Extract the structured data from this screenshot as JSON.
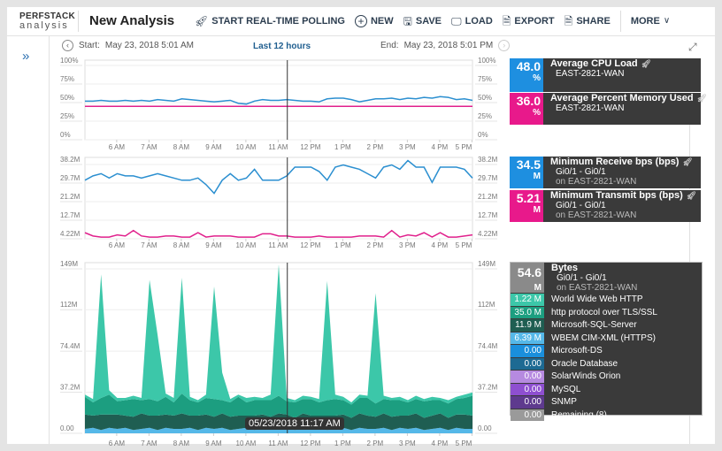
{
  "header": {
    "logo_top": "PERFSTACK",
    "logo_bottom": "analysis",
    "title": "New Analysis",
    "toolbar": [
      {
        "label": "START REAL-TIME POLLING",
        "icon": "rocket-icon"
      },
      {
        "label": "NEW",
        "icon": "plus-circle-icon"
      },
      {
        "label": "SAVE",
        "icon": "save-icon"
      },
      {
        "label": "LOAD",
        "icon": "load-icon"
      },
      {
        "label": "EXPORT",
        "icon": "export-icon"
      },
      {
        "label": "SHARE",
        "icon": "share-icon"
      },
      {
        "label": "MORE",
        "icon": "chevron-down-icon"
      }
    ]
  },
  "timebar": {
    "start_label": "Start:",
    "start": "May 23, 2018 5:01 AM",
    "range": "Last 12 hours",
    "end_label": "End:",
    "end": "May 23, 2018 5:01 PM"
  },
  "tooltip": "05/23/2018 11:17 AM",
  "cursor_time": "11:17",
  "legends": {
    "cpu": {
      "value": "48.0",
      "unit": "%",
      "name": "Average CPU Load",
      "node": "EAST-2821-WAN",
      "color": "#1e8fe0"
    },
    "mem": {
      "value": "36.0",
      "unit": "%",
      "name": "Average Percent Memory Used",
      "node": "EAST-2821-WAN",
      "color": "#e8198b"
    },
    "rx": {
      "value": "34.5",
      "unit": "M",
      "name": "Minimum Receive bps (bps)",
      "iface": "Gi0/1 - Gi0/1",
      "node": "on EAST-2821-WAN",
      "color": "#1e8fe0"
    },
    "tx": {
      "value": "5.21",
      "unit": "M",
      "name": "Minimum Transmit bps (bps)",
      "iface": "Gi0/1 - Gi0/1",
      "node": "on EAST-2821-WAN",
      "color": "#e8198b"
    },
    "bytes": {
      "value": "54.6",
      "unit": "M",
      "name": "Bytes",
      "iface": "Gi0/1 - Gi0/1",
      "node": "on EAST-2821-WAN",
      "color": "#8a8a8a",
      "rows": [
        {
          "value": "1.22 M",
          "label": "World Wide Web HTTP",
          "color": "#3cc7a9"
        },
        {
          "value": "35.0 M",
          "label": "http protocol over TLS/SSL",
          "color": "#1c9e80"
        },
        {
          "value": "11.9 M",
          "label": "Microsoft-SQL-Server",
          "color": "#1f5e52"
        },
        {
          "value": "6.39 M",
          "label": "WBEM CIM-XML (HTTPS)",
          "color": "#55b8e8"
        },
        {
          "value": "0.00",
          "label": "Microsoft-DS",
          "color": "#1a8fdc"
        },
        {
          "value": "0.00",
          "label": "Oracle Database",
          "color": "#1d6a93"
        },
        {
          "value": "0.00",
          "label": "SolarWinds Orion",
          "color": "#b68ae0"
        },
        {
          "value": "0.00",
          "label": "MySQL",
          "color": "#8e4fd0"
        },
        {
          "value": "0.00",
          "label": "SNMP",
          "color": "#5e3a8e"
        },
        {
          "value": "0.00",
          "label": "Remaining (8)",
          "color": "#9a9a9a"
        }
      ]
    }
  },
  "chart_data": [
    {
      "type": "line",
      "ylim": [
        0,
        100
      ],
      "yticks": [
        "0%",
        "25%",
        "50%",
        "75%",
        "100%"
      ],
      "ytick_values": [
        0,
        25,
        50,
        75,
        100
      ],
      "xticks": [
        "6 AM",
        "7 AM",
        "8 AM",
        "9 AM",
        "10 AM",
        "11 AM",
        "12 PM",
        "1 PM",
        "2 PM",
        "3 PM",
        "4 PM",
        "5 PM"
      ],
      "x": [
        "05:01",
        "05:16",
        "05:31",
        "05:46",
        "06:01",
        "06:16",
        "06:31",
        "06:46",
        "07:01",
        "07:16",
        "07:31",
        "07:46",
        "08:01",
        "08:16",
        "08:31",
        "08:46",
        "09:01",
        "09:16",
        "09:31",
        "09:46",
        "10:01",
        "10:16",
        "10:31",
        "10:46",
        "11:01",
        "11:16",
        "11:31",
        "11:46",
        "12:01",
        "12:16",
        "12:31",
        "12:46",
        "13:01",
        "13:16",
        "13:31",
        "13:46",
        "14:01",
        "14:16",
        "14:31",
        "14:46",
        "15:01",
        "15:16",
        "15:31",
        "15:46",
        "16:01",
        "16:16",
        "16:31",
        "16:46",
        "17:01"
      ],
      "series": [
        {
          "name": "Average CPU Load",
          "color": "#2b8fd0",
          "values": [
            52,
            52,
            53,
            52,
            52,
            53,
            52,
            53,
            52,
            54,
            53,
            52,
            55,
            54,
            53,
            52,
            51,
            52,
            53,
            49,
            48,
            52,
            54,
            53,
            53,
            54,
            53,
            52,
            52,
            51,
            55,
            56,
            56,
            54,
            51,
            53,
            55,
            55,
            56,
            54,
            56,
            55,
            57,
            56,
            58,
            57,
            54,
            55,
            53
          ]
        },
        {
          "name": "Average Percent Memory Used",
          "color": "#e0208c",
          "values": [
            45,
            45,
            45,
            45,
            45,
            45,
            45,
            45,
            45,
            45,
            45,
            45,
            45,
            45,
            45,
            45,
            45,
            45,
            45,
            45,
            45,
            45,
            45,
            45,
            45,
            45,
            45,
            45,
            45,
            45,
            45,
            45,
            45,
            45,
            45,
            45,
            45,
            45,
            45,
            45,
            45,
            45,
            45,
            45,
            45,
            45,
            45,
            45,
            45
          ]
        }
      ]
    },
    {
      "type": "line",
      "ylim": [
        4.22,
        38.2
      ],
      "yticks": [
        "4.22M",
        "12.7M",
        "21.2M",
        "29.7M",
        "38.2M"
      ],
      "ytick_values": [
        4.22,
        12.7,
        21.2,
        29.7,
        38.2
      ],
      "xticks": [
        "6 AM",
        "7 AM",
        "8 AM",
        "9 AM",
        "10 AM",
        "11 AM",
        "12 PM",
        "1 PM",
        "2 PM",
        "3 PM",
        "4 PM",
        "5 PM"
      ],
      "series": [
        {
          "name": "Minimum Receive bps (bps)",
          "color": "#2b8fd0",
          "values": [
            31,
            33,
            34,
            32,
            34,
            33,
            33,
            32,
            33,
            34,
            33,
            32,
            31,
            31,
            32,
            29,
            25,
            31,
            34,
            31,
            32,
            36,
            31,
            31,
            31,
            33,
            37,
            37,
            37,
            35,
            31,
            37,
            38,
            37,
            36,
            34,
            32,
            37,
            38,
            36,
            40,
            37,
            37,
            30,
            37,
            37,
            37,
            36,
            32
          ]
        },
        {
          "name": "Minimum Transmit bps (bps)",
          "color": "#e0208c",
          "values": [
            7,
            5.5,
            5,
            5,
            6,
            5.5,
            8,
            5.5,
            5,
            5,
            5.5,
            5.5,
            5,
            5,
            7,
            5,
            5.5,
            5.5,
            5.5,
            5,
            5,
            5,
            6.5,
            6.5,
            5.5,
            5.5,
            5,
            5,
            5,
            5.5,
            5,
            5,
            5,
            5,
            5.5,
            5.5,
            5.5,
            5,
            8,
            5,
            6,
            5.5,
            7,
            5,
            7,
            5,
            5,
            5.5,
            6
          ]
        }
      ]
    },
    {
      "type": "area",
      "stacked": true,
      "ylim": [
        0,
        149
      ],
      "yticks": [
        "0.00",
        "37.2M",
        "74.4M",
        "112M",
        "149M"
      ],
      "ytick_values": [
        0,
        37.2,
        74.4,
        112,
        149
      ],
      "xticks": [
        "6 AM",
        "7 AM",
        "8 AM",
        "9 AM",
        "10 AM",
        "11 AM",
        "12 PM",
        "1 PM",
        "2 PM",
        "3 PM",
        "4 PM",
        "5 PM"
      ],
      "series": [
        {
          "name": "WBEM CIM-XML (HTTPS)",
          "color": "#55b8e8",
          "values": [
            4,
            5,
            3,
            5,
            4,
            5,
            3,
            4,
            5,
            3,
            5,
            4,
            4,
            5,
            3,
            5,
            4,
            5,
            3,
            4,
            5,
            3,
            5,
            4,
            4,
            5,
            3,
            5,
            4,
            5,
            3,
            4,
            5,
            3,
            5,
            4,
            4,
            5,
            3,
            5,
            4,
            5,
            3,
            4,
            5,
            3,
            5,
            4,
            4
          ]
        },
        {
          "name": "Microsoft-SQL-Server",
          "color": "#1f5e52",
          "values": [
            13,
            11,
            14,
            12,
            13,
            11,
            12,
            14,
            11,
            13,
            12,
            12,
            14,
            11,
            13,
            12,
            11,
            13,
            12,
            12,
            11,
            13,
            12,
            11,
            14,
            12,
            11,
            13,
            12,
            11,
            13,
            12,
            12,
            11,
            13,
            12,
            11,
            13,
            12,
            11,
            12,
            13,
            11,
            12,
            13,
            11,
            12,
            13,
            12
          ]
        },
        {
          "name": "http protocol over TLS/SSL",
          "color": "#1c9e80",
          "values": [
            16,
            12,
            15,
            18,
            12,
            14,
            16,
            12,
            15,
            13,
            16,
            12,
            18,
            14,
            12,
            15,
            16,
            12,
            13,
            17,
            12,
            14,
            13,
            15,
            16,
            12,
            14,
            13,
            15,
            12,
            14,
            15,
            13,
            12,
            14,
            16,
            12,
            13,
            15,
            14,
            12,
            13,
            15,
            14,
            12,
            13,
            14,
            15,
            18
          ]
        },
        {
          "name": "World Wide Web HTTP",
          "color": "#3cc7a9",
          "values": [
            2,
            3,
            112,
            4,
            3,
            2,
            3,
            2,
            108,
            60,
            3,
            4,
            105,
            3,
            2,
            3,
            102,
            25,
            3,
            2,
            4,
            3,
            2,
            5,
            119,
            3,
            2,
            3,
            2,
            3,
            108,
            4,
            3,
            2,
            3,
            2,
            100,
            3,
            2,
            3,
            2,
            3,
            2,
            3,
            2,
            3,
            2,
            3,
            3
          ]
        }
      ]
    }
  ]
}
